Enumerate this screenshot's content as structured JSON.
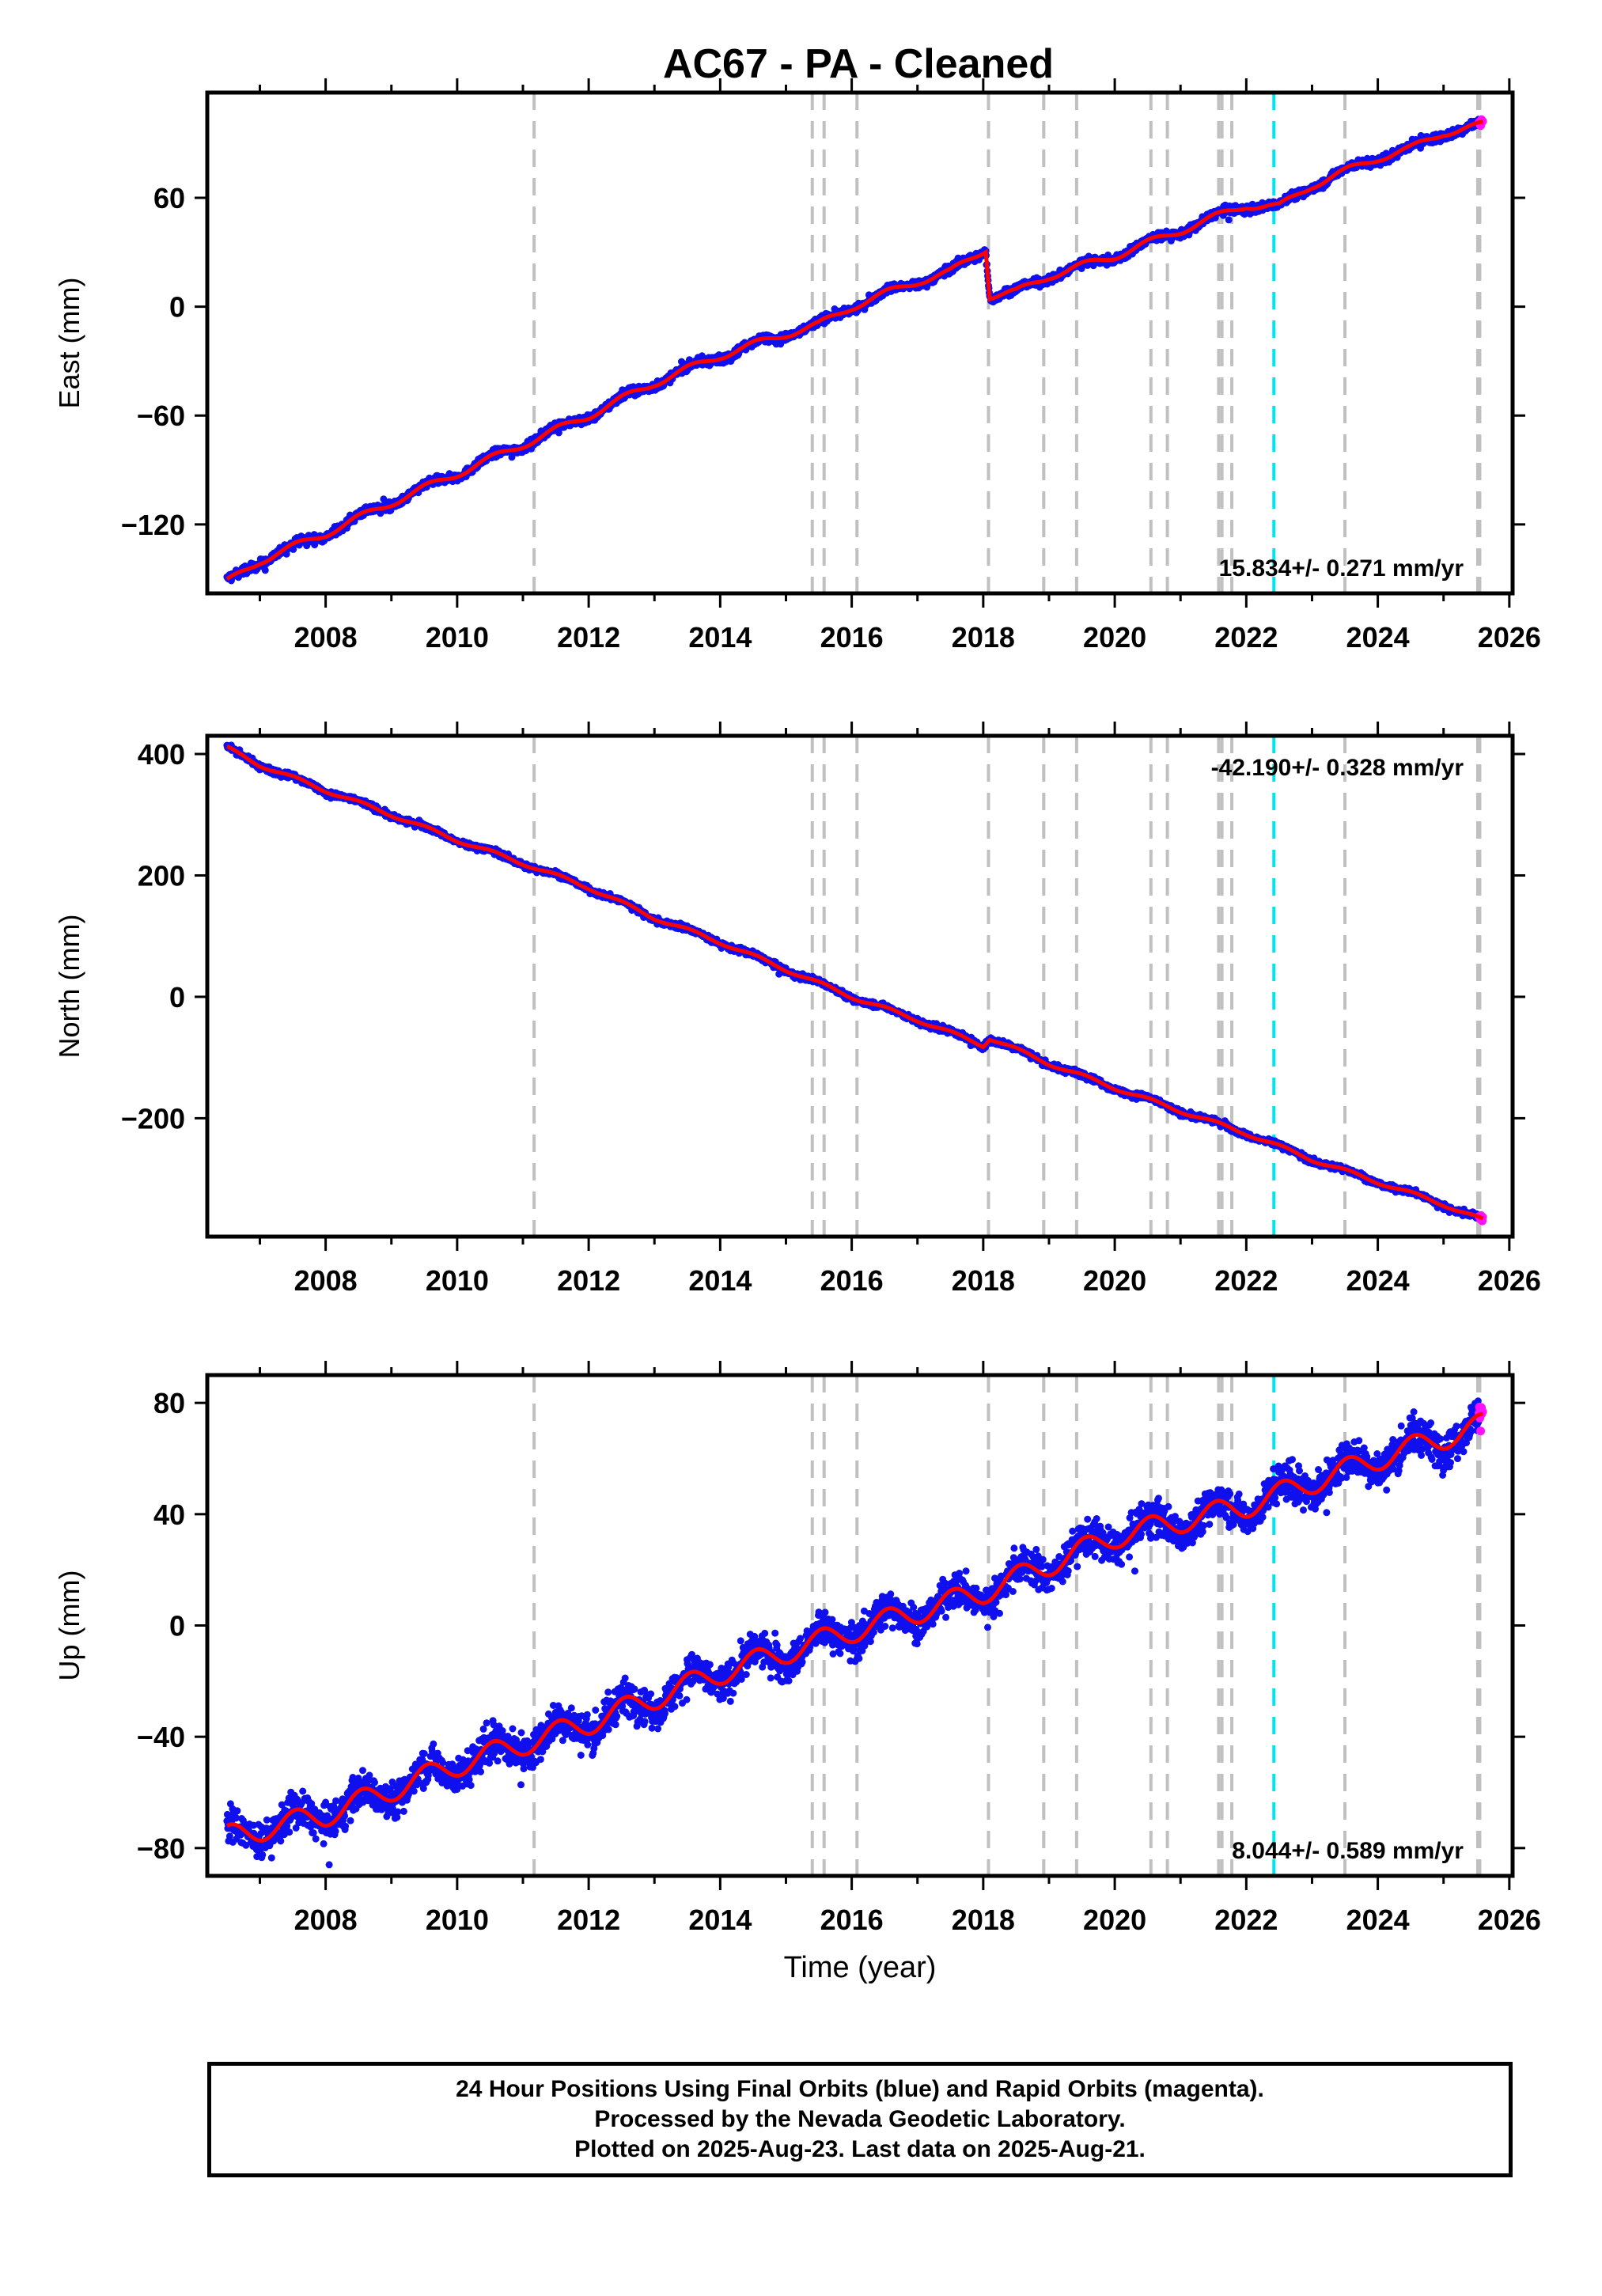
{
  "title": "AC67  - PA - Cleaned",
  "footer": {
    "line1": "24 Hour Positions Using Final Orbits (blue) and Rapid Orbits (magenta).",
    "line2": "Processed by the Nevada Geodetic Laboratory.",
    "line3": "Plotted on 2025-Aug-23. Last data on 2025-Aug-21."
  },
  "colors": {
    "final_orbits": "#1010ee",
    "rapid_orbits": "#ff10ff",
    "model": "#ff0000",
    "step_lines": "#c0c0c0",
    "antenna_line": "#00e5ee"
  },
  "chart_data": [
    {
      "type": "scatter",
      "ylabel": "East (mm)",
      "xlabel": "",
      "xlim": [
        2006.2,
        2026.05
      ],
      "ylim": [
        -158,
        118
      ],
      "x_ticks": [
        2008,
        2010,
        2012,
        2014,
        2016,
        2018,
        2020,
        2022,
        2024,
        2026
      ],
      "y_ticks": [
        -120,
        -60,
        0,
        60
      ],
      "rate_label": "15.834+/- 0.271 mm/yr",
      "rate_position": "bottom-right",
      "step_dates": [
        2011.17,
        2015.4,
        2015.58,
        2016.08,
        2018.08,
        2018.92,
        2019.42,
        2020.55,
        2020.8,
        2021.58,
        2021.63,
        2021.78,
        2023.5,
        2025.52,
        2025.55
      ],
      "antenna_change_dates": [
        2022.42
      ],
      "series": [
        {
          "x": [
            2006.5,
            2007.0,
            2008.0,
            2009.0,
            2010.0,
            2011.0,
            2012.0,
            2013.0,
            2014.0,
            2015.0,
            2015.5,
            2016.0,
            2017.0,
            2017.5,
            2018.04,
            2018.1,
            2018.5,
            2019.0,
            2020.0,
            2021.0,
            2022.0,
            2022.5,
            2023.0,
            2024.0,
            2024.5,
            2025.0,
            2025.6
          ],
          "y": [
            -152,
            -140,
            -125,
            -108,
            -92,
            -76,
            -60,
            -42,
            -27,
            -15,
            -10,
            0,
            14,
            19,
            32,
            6,
            8,
            17,
            28,
            42,
            56,
            55,
            67,
            82,
            87,
            96,
            100
          ]
        }
      ]
    },
    {
      "type": "scatter",
      "ylabel": "North (mm)",
      "xlabel": "",
      "xlim": [
        2006.2,
        2026.05
      ],
      "ylim": [
        -395,
        430
      ],
      "x_ticks": [
        2008,
        2010,
        2012,
        2014,
        2016,
        2018,
        2020,
        2022,
        2024,
        2026
      ],
      "y_ticks": [
        -200,
        0,
        200,
        400
      ],
      "rate_label": "-42.190+/- 0.328 mm/yr",
      "rate_position": "top-right",
      "step_dates": [
        2011.17,
        2015.4,
        2015.58,
        2016.08,
        2018.08,
        2018.92,
        2019.42,
        2020.55,
        2020.8,
        2021.58,
        2021.63,
        2021.78,
        2023.5,
        2025.52,
        2025.55
      ],
      "antenna_change_dates": [
        2022.42
      ],
      "series": [
        {
          "x": [
            2006.5,
            2007.0,
            2008.0,
            2009.0,
            2010.0,
            2011.0,
            2012.0,
            2013.0,
            2014.0,
            2015.0,
            2016.0,
            2017.0,
            2018.0,
            2018.1,
            2019.0,
            2020.0,
            2021.0,
            2022.0,
            2023.0,
            2024.0,
            2025.0,
            2025.6
          ],
          "y": [
            410,
            382,
            340,
            300,
            258,
            220,
            180,
            130,
            90,
            45,
            0,
            -38,
            -80,
            -68,
            -110,
            -150,
            -188,
            -225,
            -268,
            -305,
            -342,
            -368
          ]
        }
      ]
    },
    {
      "type": "scatter",
      "ylabel": "Up (mm)",
      "xlabel": "Time (year)",
      "xlim": [
        2006.2,
        2026.05
      ],
      "ylim": [
        -90,
        90
      ],
      "x_ticks": [
        2008,
        2010,
        2012,
        2014,
        2016,
        2018,
        2020,
        2022,
        2024,
        2026
      ],
      "y_ticks": [
        -80,
        -40,
        0,
        40,
        80
      ],
      "rate_label": "8.044+/- 0.589 mm/yr",
      "rate_position": "bottom-right",
      "step_dates": [
        2011.17,
        2015.4,
        2015.58,
        2016.08,
        2018.08,
        2018.92,
        2019.42,
        2020.55,
        2020.8,
        2021.58,
        2021.63,
        2021.78,
        2023.5,
        2025.52,
        2025.55
      ],
      "antenna_change_dates": [
        2022.42
      ],
      "series": [
        {
          "x": [
            2006.5,
            2008.0,
            2010.0,
            2012.0,
            2014.0,
            2016.0,
            2018.0,
            2019.0,
            2020.0,
            2022.0,
            2024.0,
            2025.6
          ],
          "y": [
            -76,
            -68,
            -50,
            -35,
            -17,
            -2,
            12,
            22,
            32,
            43,
            60,
            72
          ]
        }
      ]
    }
  ]
}
